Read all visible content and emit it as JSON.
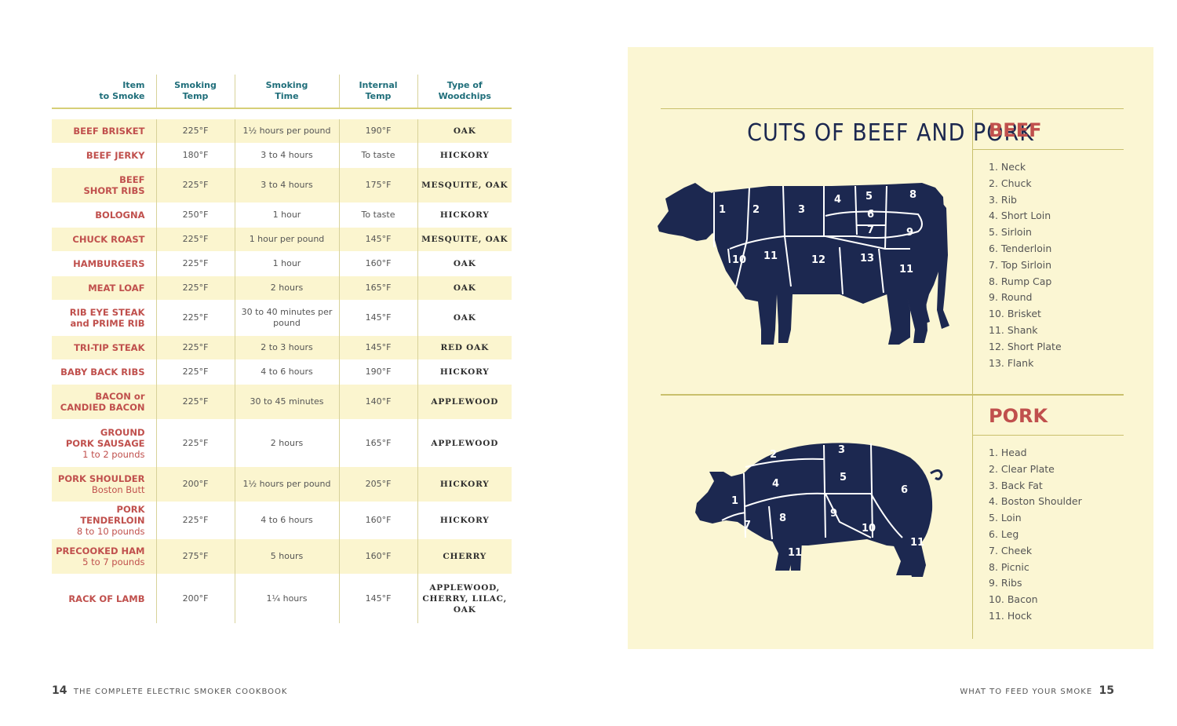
{
  "table": {
    "headers": {
      "item": [
        "Item",
        "to Smoke"
      ],
      "temp": [
        "Smoking",
        "Temp"
      ],
      "time": [
        "Smoking",
        "Time"
      ],
      "internal": [
        "Internal",
        "Temp"
      ],
      "wood": [
        "Type of",
        "Woodchips"
      ]
    },
    "rows": [
      {
        "item": "BEEF BRISKET",
        "sub": "",
        "temp": "225°F",
        "time": "1½ hours per pound",
        "internal": "190°F",
        "wood": "OAK"
      },
      {
        "item": "BEEF JERKY",
        "sub": "",
        "temp": "180°F",
        "time": "3 to 4 hours",
        "internal": "To taste",
        "wood": "HICKORY"
      },
      {
        "item": "BEEF",
        "sub": "SHORT RIBS",
        "temp": "225°F",
        "time": "3 to 4 hours",
        "internal": "175°F",
        "wood": "MESQUITE, OAK"
      },
      {
        "item": "BOLOGNA",
        "sub": "",
        "temp": "250°F",
        "time": "1 hour",
        "internal": "To taste",
        "wood": "HICKORY"
      },
      {
        "item": "CHUCK ROAST",
        "sub": "",
        "temp": "225°F",
        "time": "1 hour per pound",
        "internal": "145°F",
        "wood": "MESQUITE, OAK"
      },
      {
        "item": "HAMBURGERS",
        "sub": "",
        "temp": "225°F",
        "time": "1 hour",
        "internal": "160°F",
        "wood": "OAK"
      },
      {
        "item": "MEAT LOAF",
        "sub": "",
        "temp": "225°F",
        "time": "2 hours",
        "internal": "165°F",
        "wood": "OAK"
      },
      {
        "item": "RIB EYE STEAK",
        "sub": "and PRIME RIB",
        "temp": "225°F",
        "time": "30 to 40 minutes per pound",
        "internal": "145°F",
        "wood": "OAK"
      },
      {
        "item": "TRI-TIP STEAK",
        "sub": "",
        "temp": "225°F",
        "time": "2 to 3 hours",
        "internal": "145°F",
        "wood": "RED OAK"
      },
      {
        "item": "BABY BACK RIBS",
        "sub": "",
        "temp": "225°F",
        "time": "4 to 6 hours",
        "internal": "190°F",
        "wood": "HICKORY"
      },
      {
        "item": "BACON or",
        "sub": "CANDIED BACON",
        "temp": "225°F",
        "time": "30 to 45 minutes",
        "internal": "140°F",
        "wood": "APPLEWOOD"
      },
      {
        "item": "GROUND",
        "sub": "PORK SAUSAGE",
        "sub2": "1 to 2 pounds",
        "temp": "225°F",
        "time": "2 hours",
        "internal": "165°F",
        "wood": "APPLEWOOD"
      },
      {
        "item": "PORK SHOULDER",
        "sub": "Boston Butt",
        "temp": "200°F",
        "time": "1½ hours per pound",
        "internal": "205°F",
        "wood": "HICKORY"
      },
      {
        "item": "PORK TENDERLOIN",
        "sub": "8 to 10 pounds",
        "temp": "225°F",
        "time": "4 to 6 hours",
        "internal": "160°F",
        "wood": "HICKORY"
      },
      {
        "item": "PRECOOKED HAM",
        "sub": "5 to 7 pounds",
        "temp": "275°F",
        "time": "5 hours",
        "internal": "160°F",
        "wood": "CHERRY"
      },
      {
        "item": "RACK OF LAMB",
        "sub": "",
        "temp": "200°F",
        "time": "1¼ hours",
        "internal": "145°F",
        "wood": "APPLEWOOD, CHERRY, LILAC, OAK"
      }
    ]
  },
  "footer": {
    "left_number": "14",
    "left_text": "THE COMPLETE ELECTRIC SMOKER COOKBOOK",
    "right_text": "WHAT TO FEED YOUR SMOKE",
    "right_number": "15"
  },
  "panel": {
    "title": "CUTS OF BEEF AND PORK",
    "beef": {
      "heading": "BEEF",
      "cuts": [
        "1. Neck",
        "2. Chuck",
        "3. Rib",
        "4. Short Loin",
        "5. Sirloin",
        "6. Tenderloin",
        "7. Top Sirloin",
        "8. Rump Cap",
        "9. Round",
        "10. Brisket",
        "11. Shank",
        "12. Short Plate",
        "13. Flank"
      ],
      "diagram_labels": [
        "1",
        "2",
        "3",
        "4",
        "5",
        "6",
        "7",
        "8",
        "9",
        "10",
        "11",
        "12",
        "13",
        "11"
      ]
    },
    "pork": {
      "heading": "PORK",
      "cuts": [
        "1. Head",
        "2. Clear Plate",
        "3. Back Fat",
        "4. Boston Shoulder",
        "5. Loin",
        "6. Leg",
        "7. Cheek",
        "8. Picnic",
        "9. Ribs",
        "10. Bacon",
        "11. Hock"
      ],
      "diagram_labels": [
        "1",
        "2",
        "3",
        "4",
        "5",
        "6",
        "7",
        "8",
        "9",
        "10",
        "11",
        "11"
      ]
    },
    "colors": {
      "background": "#fbf6d3",
      "animal": "#1c2850",
      "accent": "#c0504d",
      "rule": "#c9c06c"
    }
  }
}
